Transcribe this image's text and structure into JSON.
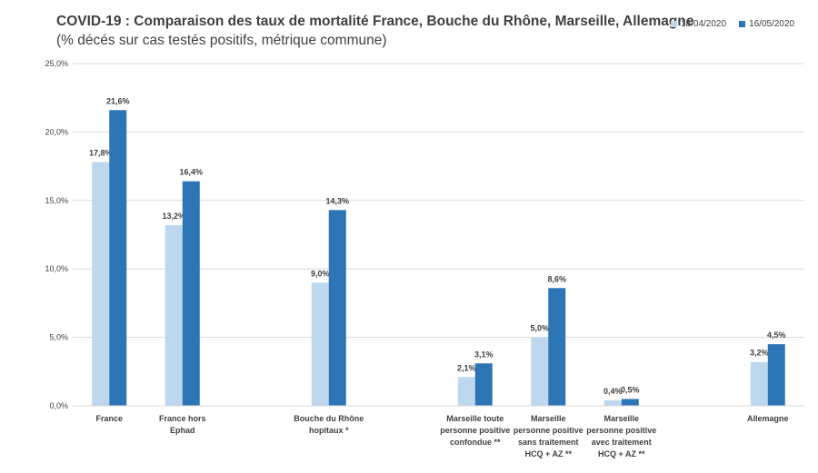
{
  "chart_data": {
    "type": "bar",
    "title": "COVID-19 : Comparaison des taux de mortalité France, Bouche du Rhône, Marseille, Allemagne",
    "subtitle": "(% décés sur cas testés positifs, métrique commune)",
    "xlabel": "",
    "ylabel": "",
    "ylim": [
      0,
      25
    ],
    "yticks": [
      "0,0%",
      "5,0%",
      "10,0%",
      "15,0%",
      "20,0%",
      "25,0%"
    ],
    "grid": true,
    "legend_position": "top-right",
    "categories": [
      {
        "id": "france",
        "lines": [
          "France"
        ]
      },
      {
        "id": "france-hors-ephad",
        "lines": [
          "France hors",
          "Ephad"
        ]
      },
      {
        "id": "empty-1",
        "lines": []
      },
      {
        "id": "bouche-du-rhone",
        "lines": [
          "Bouche du Rhône",
          "hopitaux *"
        ]
      },
      {
        "id": "empty-2",
        "lines": []
      },
      {
        "id": "marseille-toute",
        "lines": [
          "Marseille toute",
          "personne positive",
          "confondue **"
        ]
      },
      {
        "id": "marseille-sans",
        "lines": [
          "Marseille",
          "personne positive",
          "sans traitement",
          "HCQ + AZ **"
        ]
      },
      {
        "id": "marseille-avec",
        "lines": [
          "Marseille",
          "personne positive",
          "avec traitement",
          "HCQ + AZ **"
        ]
      },
      {
        "id": "empty-3",
        "lines": []
      },
      {
        "id": "allemagne",
        "lines": [
          "Allemagne"
        ]
      }
    ],
    "series": [
      {
        "name": "18/04/2020",
        "color": "#bdd7ee",
        "values": [
          17.8,
          13.2,
          null,
          9.0,
          null,
          2.1,
          5.0,
          0.4,
          null,
          3.2
        ],
        "labels": [
          "17,8%",
          "13,2%",
          "",
          "9,0%",
          "",
          "2,1%",
          "5,0%",
          "0,4%",
          "",
          "3,2%"
        ]
      },
      {
        "name": "16/05/2020",
        "color": "#2e75b6",
        "values": [
          21.6,
          16.4,
          null,
          14.3,
          null,
          3.1,
          8.6,
          0.5,
          null,
          4.5
        ],
        "labels": [
          "21,6%",
          "16,4%",
          "",
          "14,3%",
          "",
          "3,1%",
          "8,6%",
          "0,5%",
          "",
          "4,5%"
        ]
      }
    ]
  },
  "colors": {
    "gridline": "#d9d9d9",
    "text": "#404040"
  }
}
